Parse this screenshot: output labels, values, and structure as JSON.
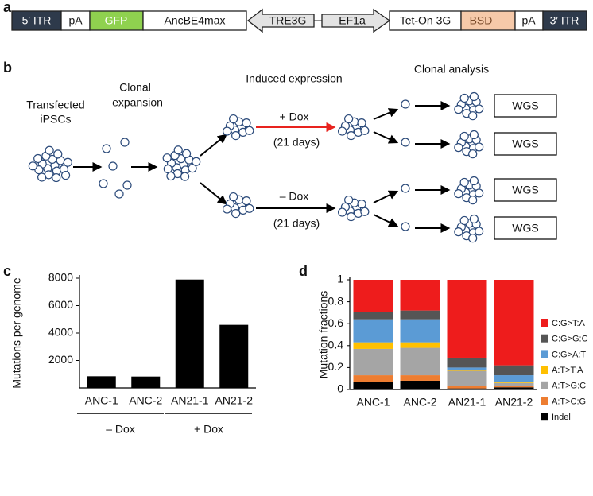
{
  "panel_labels": [
    "a",
    "b",
    "c",
    "d"
  ],
  "construct": [
    "5′ ITR",
    "pA",
    "GFP",
    "AncBE4max",
    "TRE3G",
    "EF1a",
    "Tet-On 3G",
    "BSD",
    "pA",
    "3′ ITR"
  ],
  "workflow": {
    "stages": [
      [
        "Transfected",
        "iPSCs"
      ],
      [
        "Clonal",
        "expansion"
      ],
      [
        "Induced expression"
      ],
      [
        "Clonal analysis"
      ]
    ],
    "plus_dox": "+ Dox",
    "minus_dox": "– Dox",
    "durations": [
      "(21 days)",
      "(21 days)"
    ],
    "outputs": [
      "WGS",
      "WGS",
      "WGS",
      "WGS"
    ]
  },
  "chart_data": [
    {
      "type": "bar",
      "categories": [
        "ANC-1",
        "ANC-2",
        "AN21-1",
        "AN21-2"
      ],
      "values": [
        850,
        830,
        7900,
        4600
      ],
      "color": "#000000",
      "ylim": [
        0,
        8000
      ],
      "yticks": [
        2000,
        4000,
        6000,
        8000
      ],
      "y_label": "Mutations per genome",
      "groups": [
        "– Dox",
        "+ Dox"
      ]
    },
    {
      "type": "stacked_bar",
      "categories": [
        "ANC-1",
        "ANC-2",
        "AN21-1",
        "AN21-2"
      ],
      "series": [
        {
          "name": "Indel",
          "color": "#000000",
          "values": [
            0.07,
            0.08,
            0.01,
            0.02
          ]
        },
        {
          "name": "A:T>C:G",
          "color": "#ed7d31",
          "values": [
            0.06,
            0.05,
            0.02,
            0.01
          ]
        },
        {
          "name": "A:T>G:C",
          "color": "#a5a5a5",
          "values": [
            0.24,
            0.25,
            0.14,
            0.03
          ]
        },
        {
          "name": "A:T>T:A",
          "color": "#ffc000",
          "values": [
            0.06,
            0.05,
            0.01,
            0.01
          ]
        },
        {
          "name": "C:G>A:T",
          "color": "#5b9bd5",
          "values": [
            0.21,
            0.21,
            0.02,
            0.06
          ]
        },
        {
          "name": "C:G>G:C",
          "color": "#555555",
          "values": [
            0.07,
            0.08,
            0.09,
            0.09
          ]
        },
        {
          "name": "C:G>T:A",
          "color": "#ee1c1c",
          "values": [
            0.29,
            0.28,
            0.71,
            0.78
          ]
        }
      ],
      "ylim": [
        0,
        1
      ],
      "yticks": [
        0,
        0.2,
        0.4,
        0.6,
        0.8,
        1
      ],
      "y_label": "Mutation fractions"
    }
  ]
}
